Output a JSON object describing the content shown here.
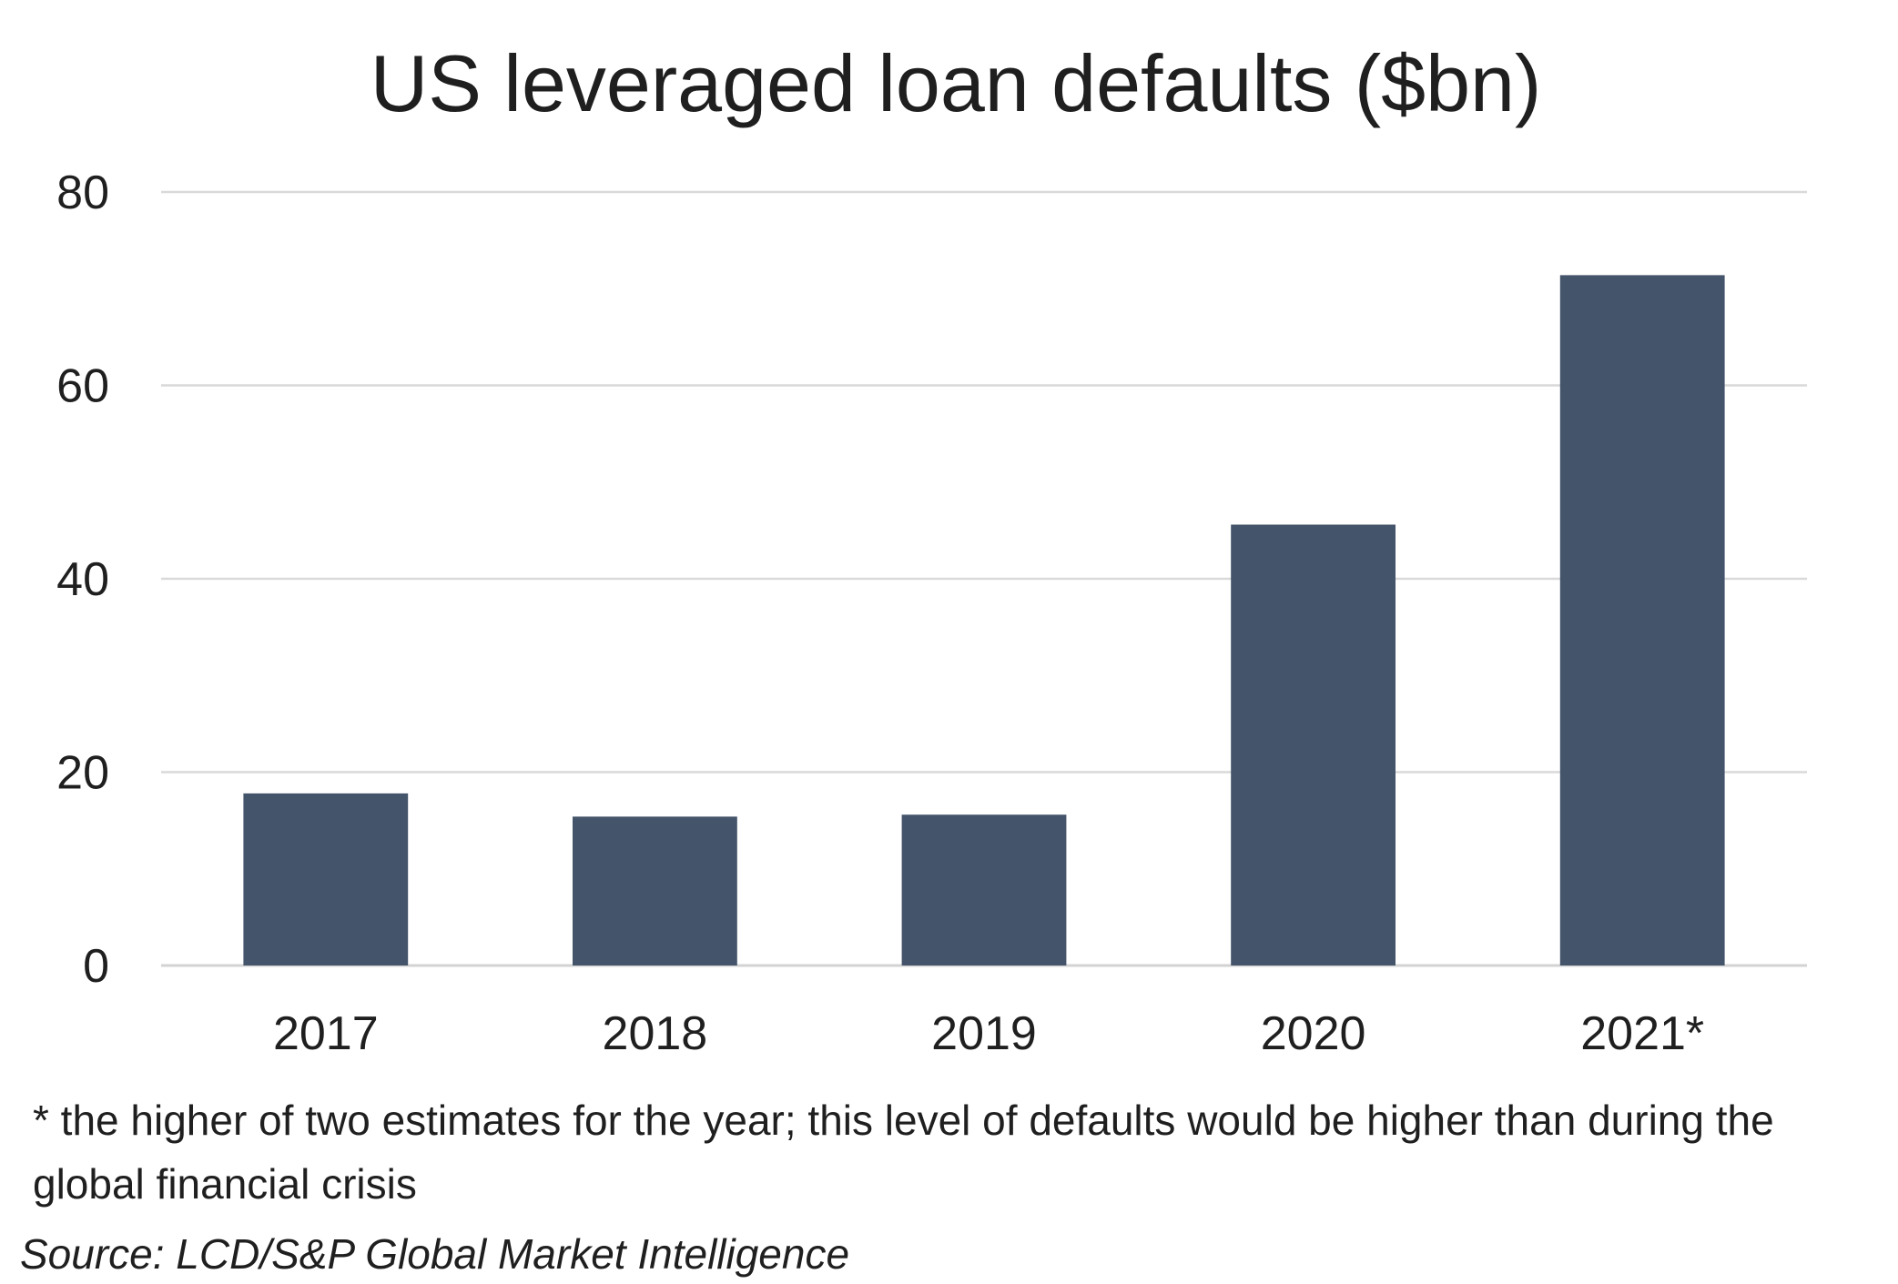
{
  "chart_data": {
    "type": "bar",
    "title": "US leveraged loan defaults ($bn)",
    "categories": [
      "2017",
      "2018",
      "2019",
      "2020",
      "2021*"
    ],
    "values": [
      17.8,
      15.4,
      15.6,
      45.6,
      71.4
    ],
    "ylim": [
      0,
      80
    ],
    "yticks": [
      "0",
      "20",
      "40",
      "60",
      "80"
    ],
    "xlabel": "",
    "ylabel": "",
    "grid": true,
    "legend": "none",
    "bar_color": "#44546a",
    "footnote": "* the higher of two estimates for the year; this level of defaults would be higher than during the global financial crisis",
    "source": "Source: LCD/S&P Global Market Intelligence"
  }
}
